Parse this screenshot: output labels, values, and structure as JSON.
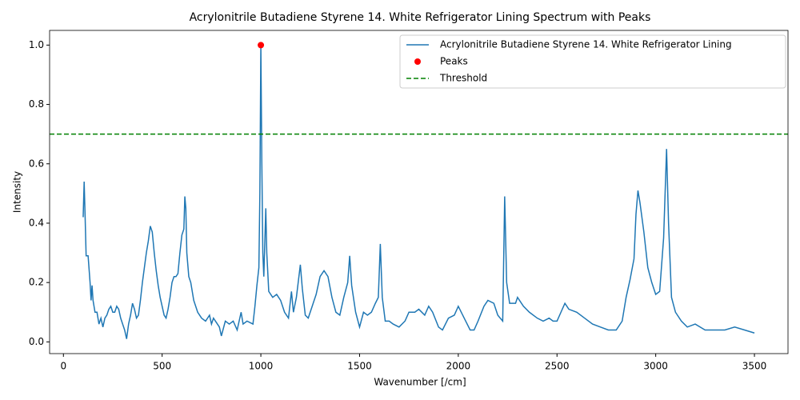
{
  "chart_data": {
    "type": "line",
    "title": "Acrylonitrile Butadiene Styrene 14. White Refrigerator Lining Spectrum with Peaks",
    "xlabel": "Wavenumber [/cm]",
    "ylabel": "Intensity",
    "x": [
      100,
      105,
      110,
      115,
      125,
      135,
      140,
      145,
      150,
      160,
      170,
      180,
      190,
      200,
      210,
      220,
      230,
      240,
      250,
      260,
      270,
      280,
      290,
      300,
      310,
      320,
      330,
      340,
      350,
      360,
      370,
      380,
      390,
      400,
      410,
      420,
      430,
      440,
      450,
      460,
      470,
      480,
      490,
      500,
      510,
      520,
      530,
      540,
      550,
      560,
      570,
      580,
      590,
      600,
      610,
      615,
      620,
      625,
      635,
      645,
      660,
      680,
      700,
      720,
      740,
      750,
      760,
      780,
      790,
      800,
      820,
      840,
      860,
      880,
      900,
      910,
      930,
      960,
      970,
      980,
      990,
      995,
      1000,
      1005,
      1010,
      1015,
      1025,
      1030,
      1040,
      1060,
      1080,
      1100,
      1120,
      1140,
      1155,
      1165,
      1180,
      1200,
      1210,
      1225,
      1240,
      1260,
      1280,
      1300,
      1320,
      1340,
      1360,
      1380,
      1400,
      1420,
      1440,
      1450,
      1460,
      1480,
      1500,
      1520,
      1540,
      1560,
      1580,
      1595,
      1605,
      1615,
      1630,
      1650,
      1670,
      1700,
      1730,
      1750,
      1780,
      1800,
      1830,
      1850,
      1870,
      1900,
      1920,
      1950,
      1980,
      2000,
      2030,
      2060,
      2080,
      2100,
      2130,
      2150,
      2180,
      2200,
      2225,
      2235,
      2245,
      2260,
      2290,
      2300,
      2330,
      2360,
      2400,
      2430,
      2460,
      2480,
      2500,
      2520,
      2540,
      2560,
      2600,
      2640,
      2680,
      2720,
      2760,
      2800,
      2830,
      2850,
      2870,
      2890,
      2900,
      2910,
      2920,
      2940,
      2960,
      2980,
      3000,
      3020,
      3040,
      3055,
      3065,
      3080,
      3100,
      3130,
      3160,
      3200,
      3250,
      3300,
      3350,
      3400,
      3450,
      3500
    ],
    "series": [
      {
        "name": "Acrylonitrile Butadiene Styrene 14. White Refrigerator Lining",
        "color": "#1f77b4",
        "values": [
          0.42,
          0.54,
          0.42,
          0.29,
          0.29,
          0.2,
          0.14,
          0.19,
          0.14,
          0.1,
          0.1,
          0.06,
          0.08,
          0.05,
          0.08,
          0.09,
          0.11,
          0.12,
          0.1,
          0.1,
          0.12,
          0.11,
          0.08,
          0.06,
          0.04,
          0.01,
          0.06,
          0.09,
          0.13,
          0.11,
          0.08,
          0.09,
          0.14,
          0.2,
          0.25,
          0.3,
          0.34,
          0.39,
          0.37,
          0.3,
          0.24,
          0.19,
          0.15,
          0.12,
          0.09,
          0.08,
          0.11,
          0.15,
          0.2,
          0.22,
          0.22,
          0.23,
          0.3,
          0.36,
          0.38,
          0.49,
          0.45,
          0.3,
          0.22,
          0.2,
          0.14,
          0.1,
          0.08,
          0.07,
          0.09,
          0.06,
          0.08,
          0.06,
          0.05,
          0.02,
          0.07,
          0.06,
          0.07,
          0.04,
          0.1,
          0.06,
          0.07,
          0.06,
          0.12,
          0.19,
          0.25,
          0.5,
          1.0,
          0.6,
          0.3,
          0.22,
          0.45,
          0.3,
          0.17,
          0.15,
          0.16,
          0.14,
          0.1,
          0.08,
          0.17,
          0.1,
          0.15,
          0.26,
          0.18,
          0.09,
          0.08,
          0.12,
          0.16,
          0.22,
          0.24,
          0.22,
          0.15,
          0.1,
          0.09,
          0.15,
          0.2,
          0.29,
          0.19,
          0.1,
          0.05,
          0.1,
          0.09,
          0.1,
          0.13,
          0.15,
          0.33,
          0.15,
          0.07,
          0.07,
          0.06,
          0.05,
          0.07,
          0.1,
          0.1,
          0.11,
          0.09,
          0.12,
          0.1,
          0.05,
          0.04,
          0.08,
          0.09,
          0.12,
          0.08,
          0.04,
          0.04,
          0.07,
          0.12,
          0.14,
          0.13,
          0.09,
          0.07,
          0.49,
          0.2,
          0.13,
          0.13,
          0.15,
          0.12,
          0.1,
          0.08,
          0.07,
          0.08,
          0.07,
          0.07,
          0.1,
          0.13,
          0.11,
          0.1,
          0.08,
          0.06,
          0.05,
          0.04,
          0.04,
          0.07,
          0.15,
          0.21,
          0.28,
          0.43,
          0.51,
          0.47,
          0.37,
          0.25,
          0.2,
          0.16,
          0.17,
          0.35,
          0.65,
          0.4,
          0.15,
          0.1,
          0.07,
          0.05,
          0.06,
          0.04,
          0.04,
          0.04,
          0.05,
          0.04,
          0.03
        ]
      }
    ],
    "peaks": {
      "name": "Peaks",
      "color": "#ff0000",
      "x": [
        1000
      ],
      "values": [
        1.0
      ]
    },
    "threshold": {
      "name": "Threshold",
      "color": "#008000",
      "value": 0.7
    },
    "xlim": [
      -70,
      3670
    ],
    "ylim": [
      -0.0395,
      1.0495
    ],
    "xticks": [
      0,
      500,
      1000,
      1500,
      2000,
      2500,
      3000,
      3500
    ],
    "yticks": [
      {
        "value": 0,
        "label": "0.0"
      },
      0.2,
      0.4,
      0.6,
      0.8,
      {
        "value": 1,
        "label": "1.0"
      }
    ],
    "legend": "upper right"
  }
}
